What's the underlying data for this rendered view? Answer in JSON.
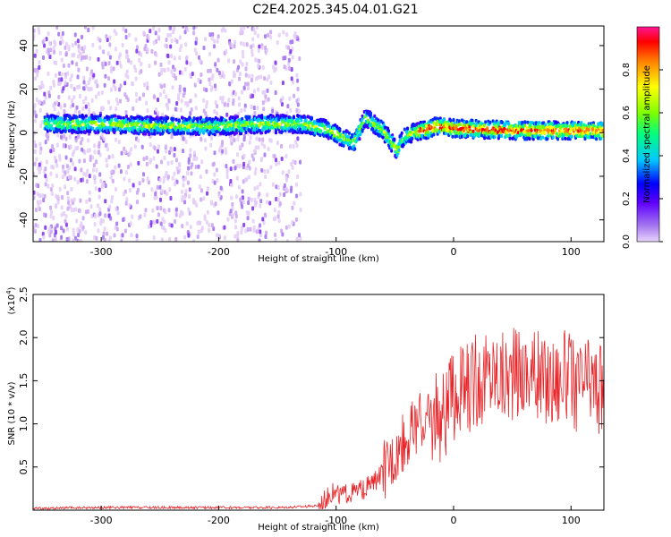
{
  "title": "C2E4.2025.345.04.01.G21",
  "chart_data": [
    {
      "type": "heatmap",
      "xlabel": "Height of straight line (km)",
      "ylabel": "Frequency (Hz)",
      "xlim": [
        -358,
        128
      ],
      "ylim": [
        -50,
        49
      ],
      "x_ticks": [
        "-300",
        "-200",
        "-100",
        "0",
        "100"
      ],
      "y_ticks": [
        "40",
        "20",
        "0",
        "-20",
        "-40"
      ],
      "grid": false,
      "colorbar": {
        "label": "Normalized spectral amplitude",
        "range": [
          0,
          1
        ],
        "ticks": [
          "0.0",
          "0.2",
          "0.4",
          "0.6",
          "0.8"
        ],
        "colors": [
          "#e8d4fb",
          "#8a2be2",
          "#3b00ff",
          "#0000ff",
          "#00c8ff",
          "#00ff7f",
          "#7fff00",
          "#ffff00",
          "#ff8000",
          "#ff0000",
          "#ff1493"
        ]
      },
      "band": {
        "x": [
          -348,
          -300,
          -250,
          -200,
          -160,
          -130,
          -110,
          -95,
          -85,
          -75,
          -60,
          -48,
          -42,
          -35,
          -25,
          -15,
          0,
          50,
          100,
          128
        ],
        "y": [
          4,
          4,
          3,
          3,
          4,
          4,
          2,
          -2,
          -5,
          7,
          1,
          -8,
          -2,
          0,
          1,
          3,
          2,
          1,
          1,
          1
        ]
      },
      "noise_region": {
        "x": [
          -358,
          -130
        ],
        "y": [
          -50,
          49
        ]
      }
    },
    {
      "type": "line",
      "xlabel": "Height of straight line (km)",
      "ylabel": "SNR (10 * v/v)",
      "y_multiplier": "(x10",
      "y_multiplier_exp": "4",
      "y_multiplier_close": ")",
      "xlim": [
        -358,
        128
      ],
      "ylim": [
        0,
        2.5
      ],
      "x_ticks": [
        "-300",
        "-200",
        "-100",
        "0",
        "100"
      ],
      "y_ticks": [
        "2.5",
        "2.0",
        "1.5",
        "1.0",
        "0.5"
      ],
      "grid": false,
      "color": "#e8262a",
      "series": [
        {
          "x": [
            -358,
            -300,
            -250,
            -200,
            -150,
            -115,
            -105,
            -95,
            -85,
            -75,
            -65,
            -55,
            -45,
            -35,
            -25,
            -15,
            -5,
            5,
            15,
            25,
            35,
            45,
            55,
            65,
            75,
            85,
            95,
            105,
            115,
            128
          ],
          "y": [
            0.02,
            0.03,
            0.03,
            0.03,
            0.03,
            0.05,
            0.2,
            0.18,
            0.2,
            0.25,
            0.35,
            0.55,
            0.75,
            0.95,
            1.05,
            1.05,
            1.2,
            1.35,
            1.45,
            1.55,
            1.6,
            1.55,
            1.6,
            1.6,
            1.5,
            1.5,
            1.55,
            1.45,
            1.5,
            1.4
          ]
        }
      ]
    }
  ]
}
